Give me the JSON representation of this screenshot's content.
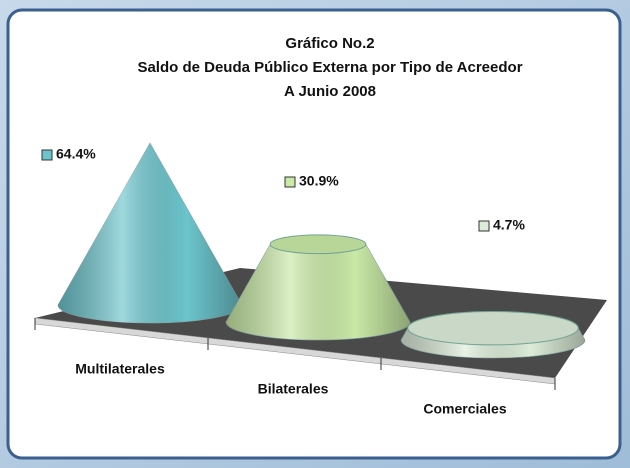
{
  "chart_data": {
    "type": "cone",
    "title": [
      "Gráfico No.2",
      "Saldo de Deuda Público Externa por Tipo de Acreedor",
      "A Junio 2008"
    ],
    "categories": [
      "Multilaterales",
      "Bilaterales",
      "Comerciales"
    ],
    "values": [
      64.4,
      30.9,
      4.7
    ],
    "value_labels": [
      "64.4%",
      "30.9%",
      "4.7%"
    ],
    "colors": [
      "#6cc4cc",
      "#c9e9a6",
      "#dcecd8"
    ]
  }
}
